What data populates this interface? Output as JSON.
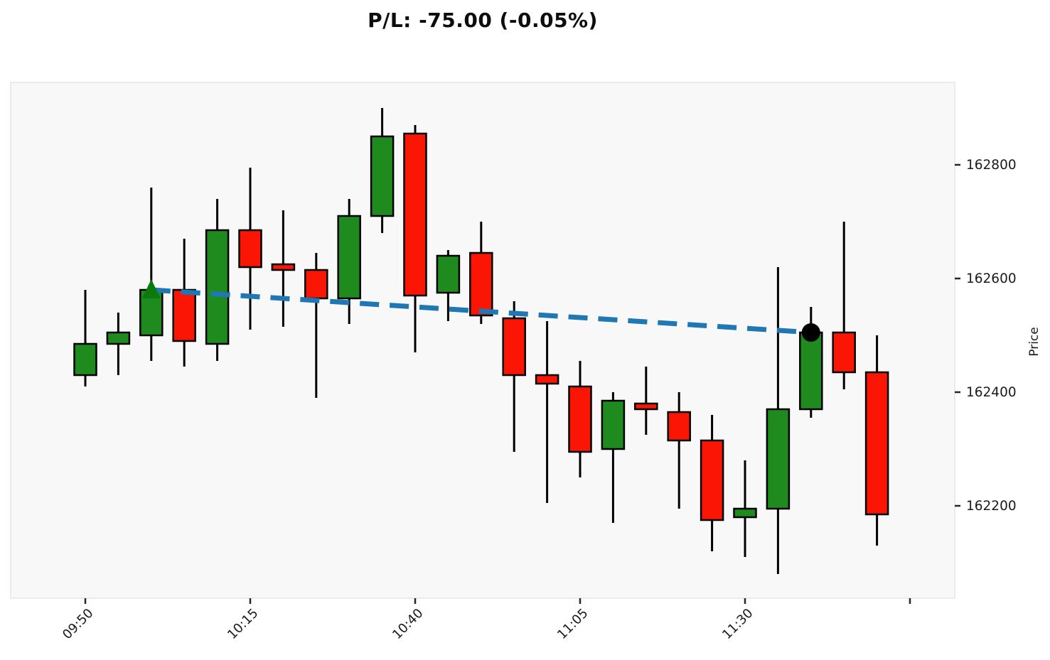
{
  "title": "P/L: -75.00 (-0.05%)",
  "chart_data": {
    "type": "candlestick",
    "title": "P/L: -75.00 (-0.05%)",
    "interval": "5min",
    "x_axis": {
      "tick_labels": [
        "09:50",
        "10:15",
        "10:40",
        "11:05",
        "11:30"
      ],
      "tick_candle_indices": [
        0,
        5,
        10,
        15,
        20
      ],
      "unlabeled_tick_index": 25
    },
    "y_axis": {
      "label": "Price",
      "ticks": [
        162800,
        162600,
        162400,
        162200
      ],
      "range": [
        162040,
        162945
      ]
    },
    "candles": [
      {
        "time": "09:50",
        "open": 162430,
        "high": 162580,
        "low": 162410,
        "close": 162485
      },
      {
        "time": "09:55",
        "open": 162485,
        "high": 162540,
        "low": 162430,
        "close": 162505
      },
      {
        "time": "10:00",
        "open": 162500,
        "high": 162760,
        "low": 162455,
        "close": 162580
      },
      {
        "time": "10:05",
        "open": 162580,
        "high": 162670,
        "low": 162445,
        "close": 162490
      },
      {
        "time": "10:10",
        "open": 162485,
        "high": 162740,
        "low": 162455,
        "close": 162685
      },
      {
        "time": "10:15",
        "open": 162685,
        "high": 162795,
        "low": 162510,
        "close": 162620
      },
      {
        "time": "10:20",
        "open": 162625,
        "high": 162720,
        "low": 162515,
        "close": 162615
      },
      {
        "time": "10:25",
        "open": 162615,
        "high": 162645,
        "low": 162390,
        "close": 162565
      },
      {
        "time": "10:30",
        "open": 162565,
        "high": 162740,
        "low": 162520,
        "close": 162710
      },
      {
        "time": "10:35",
        "open": 162710,
        "high": 162900,
        "low": 162680,
        "close": 162850
      },
      {
        "time": "10:40",
        "open": 162855,
        "high": 162870,
        "low": 162470,
        "close": 162570
      },
      {
        "time": "10:45",
        "open": 162575,
        "high": 162650,
        "low": 162525,
        "close": 162640
      },
      {
        "time": "10:50",
        "open": 162645,
        "high": 162700,
        "low": 162520,
        "close": 162535
      },
      {
        "time": "10:55",
        "open": 162530,
        "high": 162560,
        "low": 162295,
        "close": 162430
      },
      {
        "time": "11:00",
        "open": 162430,
        "high": 162525,
        "low": 162205,
        "close": 162415
      },
      {
        "time": "11:05",
        "open": 162410,
        "high": 162455,
        "low": 162250,
        "close": 162295
      },
      {
        "time": "11:10",
        "open": 162300,
        "high": 162400,
        "low": 162170,
        "close": 162385
      },
      {
        "time": "11:15",
        "open": 162380,
        "high": 162445,
        "low": 162325,
        "close": 162370
      },
      {
        "time": "11:20",
        "open": 162365,
        "high": 162400,
        "low": 162195,
        "close": 162315
      },
      {
        "time": "11:25",
        "open": 162315,
        "high": 162360,
        "low": 162120,
        "close": 162175
      },
      {
        "time": "11:30",
        "open": 162180,
        "high": 162280,
        "low": 162110,
        "close": 162195
      },
      {
        "time": "11:35",
        "open": 162195,
        "high": 162620,
        "low": 162080,
        "close": 162370
      },
      {
        "time": "11:40",
        "open": 162370,
        "high": 162550,
        "low": 162355,
        "close": 162505
      },
      {
        "time": "11:45",
        "open": 162505,
        "high": 162700,
        "low": 162405,
        "close": 162435
      },
      {
        "time": "11:50",
        "open": 162435,
        "high": 162500,
        "low": 162130,
        "close": 162185
      }
    ],
    "markers": {
      "entry": {
        "time": "10:00",
        "price": 162580,
        "shape": "triangle-up",
        "color": "#0A7A0A"
      },
      "current": {
        "time": "11:40",
        "price": 162505,
        "shape": "circle",
        "color": "#000000"
      }
    },
    "trade_line": {
      "from_time": "10:00",
      "from_price": 162580,
      "to_time": "11:40",
      "to_price": 162505,
      "color": "#1F77B4",
      "style": "dashed"
    },
    "colors": {
      "up": "#1F8B1F",
      "down": "#FA1505",
      "edge": "#000000",
      "wick": "#000000",
      "plot_bg": "#F8F8F8",
      "plot_border": "#EBEBEB",
      "tick": "#262626",
      "tick_text": "#1A1A1A"
    }
  }
}
